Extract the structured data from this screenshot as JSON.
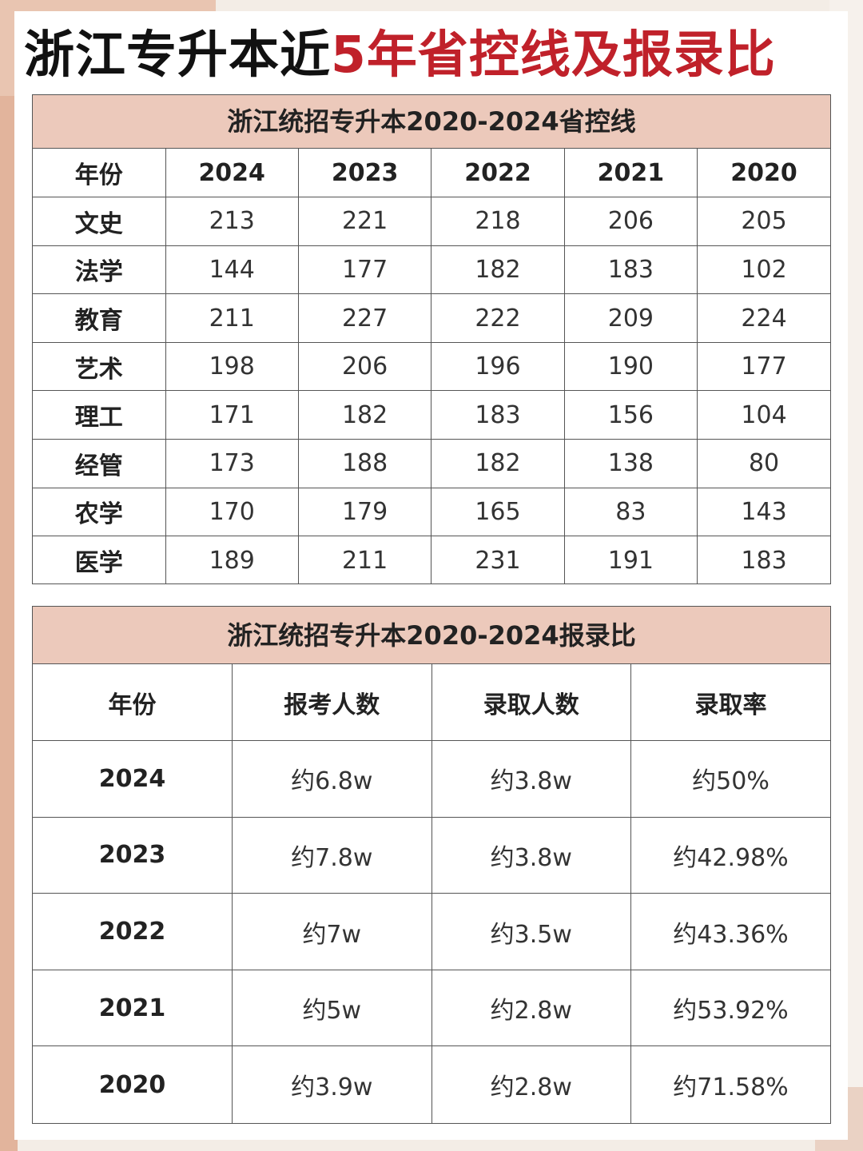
{
  "title": {
    "part1": "浙江专升本近",
    "part2": "5年省控线及报录比"
  },
  "colors": {
    "accent_red": "#c0212a",
    "header_fill": "#ecc9bb",
    "side_block": "#e2b49c"
  },
  "control_table": {
    "caption": "浙江统招专升本2020-2024省控线",
    "header": [
      "年份",
      "2024",
      "2023",
      "2022",
      "2021",
      "2020"
    ],
    "rows": [
      [
        "文史",
        "213",
        "221",
        "218",
        "206",
        "205"
      ],
      [
        "法学",
        "144",
        "177",
        "182",
        "183",
        "102"
      ],
      [
        "教育",
        "211",
        "227",
        "222",
        "209",
        "224"
      ],
      [
        "艺术",
        "198",
        "206",
        "196",
        "190",
        "177"
      ],
      [
        "理工",
        "171",
        "182",
        "183",
        "156",
        "104"
      ],
      [
        "经管",
        "173",
        "188",
        "182",
        "138",
        "80"
      ],
      [
        "农学",
        "170",
        "179",
        "165",
        "83",
        "143"
      ],
      [
        "医学",
        "189",
        "211",
        "231",
        "191",
        "183"
      ]
    ]
  },
  "ratio_table": {
    "caption": "浙江统招专升本2020-2024报录比",
    "header": [
      "年份",
      "报考人数",
      "录取人数",
      "录取率"
    ],
    "rows": [
      [
        "2024",
        "约6.8w",
        "约3.8w",
        "约50%"
      ],
      [
        "2023",
        "约7.8w",
        "约3.8w",
        "约42.98%"
      ],
      [
        "2022",
        "约7w",
        "约3.5w",
        "约43.36%"
      ],
      [
        "2021",
        "约5w",
        "约2.8w",
        "约53.92%"
      ],
      [
        "2020",
        "约3.9w",
        "约2.8w",
        "约71.58%"
      ]
    ]
  }
}
